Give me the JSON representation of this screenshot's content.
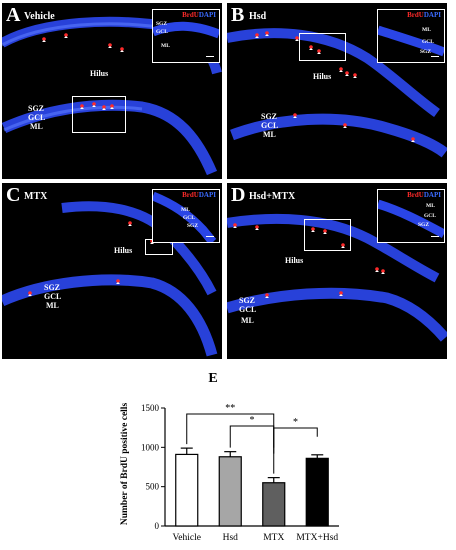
{
  "panels": [
    {
      "letter": "A",
      "condition": "Vehicle",
      "hilus": "Hilus",
      "sgz": "SGZ",
      "gcl": "GCL",
      "ml": "ML",
      "inset": {
        "brdu": "BrdU",
        "dapi": "DAPI",
        "sgz": "SGZ",
        "gcl": "GCL",
        "ml": "ML"
      }
    },
    {
      "letter": "B",
      "condition": "Hsd",
      "hilus": "Hilus",
      "sgz": "SGZ",
      "gcl": "GCL",
      "ml": "ML",
      "inset": {
        "brdu": "BrdU",
        "dapi": "DAPI",
        "sgz": "SGZ",
        "gcl": "GCL",
        "ml": "ML"
      }
    },
    {
      "letter": "C",
      "condition": "MTX",
      "hilus": "Hilus",
      "sgz": "SGZ",
      "gcl": "GCL",
      "ml": "ML",
      "inset": {
        "brdu": "BrdU",
        "dapi": "DAPI",
        "sgz": "SGZ",
        "gcl": "GCL",
        "ml": "ML"
      }
    },
    {
      "letter": "D",
      "condition": "Hsd+MTX",
      "hilus": "Hilus",
      "sgz": "SGZ",
      "gcl": "GCL",
      "ml": "ML",
      "inset": {
        "brdu": "BrdU",
        "dapi": "DAPI",
        "sgz": "SGZ",
        "gcl": "GCL",
        "ml": "ML"
      }
    }
  ],
  "colors": {
    "dapi": "#2f4cff",
    "brdu": "#ff2a2a",
    "bar_vehicle": "#ffffff",
    "bar_hsd": "#a6a6a6",
    "bar_mtx": "#5f5f5f",
    "bar_mtx_hsd": "#000000"
  },
  "chart_data": {
    "type": "bar",
    "panel_label": "E",
    "categories": [
      "Vehicle",
      "Hsd",
      "MTX",
      "MTX+Hsd"
    ],
    "values": [
      910,
      880,
      550,
      860
    ],
    "errors": [
      80,
      65,
      65,
      45
    ],
    "ylabel": "Number of BrdU positive cells",
    "ylim": [
      0,
      1500
    ],
    "yticks": [
      0,
      500,
      1000,
      1500
    ],
    "significance": [
      {
        "from": 0,
        "to": 2,
        "label": "**"
      },
      {
        "from": 1,
        "to": 2,
        "label": "*"
      },
      {
        "from": 2,
        "to": 3,
        "label": "*"
      }
    ],
    "grid": false,
    "legend": "none"
  }
}
